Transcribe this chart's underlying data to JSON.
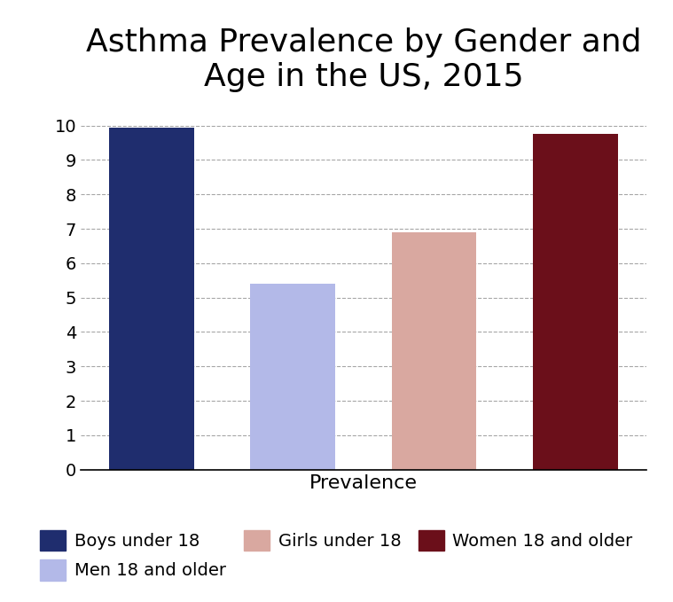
{
  "title": "Asthma Prevalence by Gender and\nAge in the US, 2015",
  "xlabel": "Prevalence",
  "ylabel": "",
  "categories": [
    "Boys under 18",
    "Men 18 and older",
    "Girls under 18",
    "Women 18 and older"
  ],
  "values": [
    9.95,
    5.4,
    6.9,
    9.75
  ],
  "bar_colors": [
    "#1f2d6e",
    "#b3b9e8",
    "#d9a8a0",
    "#6b0f1a"
  ],
  "ylim": [
    0,
    10.5
  ],
  "yticks": [
    0,
    1,
    2,
    3,
    4,
    5,
    6,
    7,
    8,
    9,
    10
  ],
  "legend_labels": [
    "Boys under 18",
    "Men 18 and older",
    "Girls under 18",
    "Women 18 and older"
  ],
  "legend_colors": [
    "#1f2d6e",
    "#b3b9e8",
    "#d9a8a0",
    "#6b0f1a"
  ],
  "background_color": "#ffffff",
  "title_fontsize": 26,
  "axis_fontsize": 16,
  "tick_fontsize": 14,
  "legend_fontsize": 14,
  "bar_width": 0.6
}
